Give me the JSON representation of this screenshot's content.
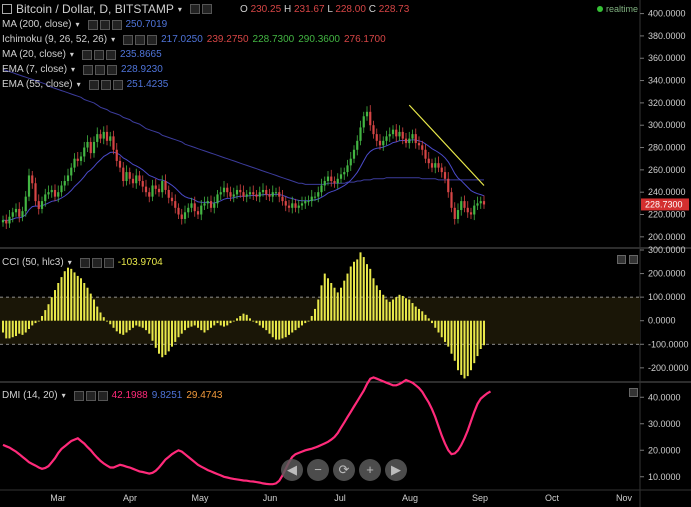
{
  "header": {
    "symbol": "Bitcoin / Dollar, D, BITSTAMP",
    "o_label": "O",
    "o_value": "230.25",
    "h_label": "H",
    "h_value": "231.67",
    "l_label": "L",
    "l_value": "228.00",
    "c_label": "C",
    "c_value": "228.73",
    "realtime": "realtime"
  },
  "indicators": [
    {
      "label": "MA (200, close)",
      "values": [
        "250.7019"
      ],
      "colors": [
        "#4f74d9"
      ]
    },
    {
      "label": "Ichimoku (9, 26, 52, 26)",
      "values": [
        "217.0250",
        "239.2750",
        "228.7300",
        "290.3600",
        "276.1700"
      ],
      "colors": [
        "#4f74d9",
        "#d64545",
        "#43b643",
        "#43b643",
        "#d64545"
      ]
    },
    {
      "label": "MA (20, close)",
      "values": [
        "235.8665"
      ],
      "colors": [
        "#4f74d9"
      ]
    },
    {
      "label": "EMA (7, close)",
      "values": [
        "228.9230"
      ],
      "colors": [
        "#4f74d9"
      ]
    },
    {
      "label": "EMA (55, close)",
      "values": [
        "251.4235"
      ],
      "colors": [
        "#4f74d9"
      ]
    }
  ],
  "cci": {
    "label": "CCI (50, hlc3)",
    "value": "-103.9704"
  },
  "dmi": {
    "label": "DMI (14, 20)",
    "values": [
      "42.1988",
      "9.8251",
      "29.4743"
    ]
  },
  "price_badge": "228.7300",
  "nav_buttons": [
    "◀",
    "−",
    "⟳",
    "+",
    "▶"
  ],
  "colors": {
    "up": "#43b643",
    "down": "#d64545",
    "cci": "#e8e84a",
    "dmi": "#ff2a7a",
    "ma": "#3c3c9c",
    "trendline": "#e8e84a",
    "badge": "#d32f2f"
  },
  "chart_data": [
    {
      "type": "candlestick",
      "title": "Bitcoin / Dollar, D, BITSTAMP",
      "ylim": [
        190,
        405
      ],
      "y_ticks": [
        200,
        220,
        240,
        260,
        280,
        300,
        320,
        340,
        360,
        380,
        400
      ],
      "y_tick_labels": [
        "200.0000",
        "220.0000",
        "240.0000",
        "260.0000",
        "280.0000",
        "300.0000",
        "320.0000",
        "340.0000",
        "360.0000",
        "380.0000",
        "400.0000"
      ],
      "x_month_labels": [
        "Mar",
        "Apr",
        "May",
        "Jun",
        "Jul",
        "Aug",
        "Sep",
        "Oct",
        "Nov"
      ],
      "close": [
        215,
        212,
        218,
        222,
        225,
        218,
        223,
        236,
        255,
        248,
        232,
        225,
        232,
        238,
        240,
        242,
        236,
        240,
        246,
        250,
        255,
        262,
        270,
        268,
        272,
        280,
        285,
        275,
        285,
        292,
        288,
        294,
        286,
        290,
        278,
        268,
        262,
        250,
        258,
        252,
        248,
        255,
        250,
        245,
        240,
        236,
        246,
        243,
        240,
        250,
        242,
        235,
        232,
        226,
        220,
        216,
        222,
        226,
        230,
        223,
        220,
        228,
        230,
        232,
        226,
        230,
        238,
        240,
        244,
        240,
        236,
        238,
        242,
        240,
        236,
        238,
        240,
        238,
        236,
        240,
        242,
        238,
        236,
        240,
        240,
        236,
        232,
        228,
        226,
        230,
        226,
        228,
        230,
        232,
        232,
        236,
        236,
        240,
        246,
        250,
        254,
        250,
        248,
        252,
        256,
        258,
        264,
        270,
        278,
        286,
        298,
        308,
        312,
        300,
        292,
        286,
        282,
        286,
        290,
        292,
        296,
        290,
        294,
        288,
        284,
        288,
        292,
        284,
        282,
        278,
        270,
        266,
        262,
        266,
        262,
        258,
        252,
        240,
        226,
        216,
        224,
        232,
        226,
        222,
        220,
        228,
        230,
        232,
        229
      ],
      "ma200": [
        350,
        349,
        348,
        347,
        346,
        345,
        344,
        343,
        342,
        341,
        340,
        339,
        338,
        337,
        335,
        334,
        333,
        332,
        331,
        330,
        329,
        328,
        327,
        326,
        325,
        323,
        322,
        321,
        320,
        318,
        316,
        315,
        314,
        312,
        311,
        310,
        309,
        307,
        306,
        305,
        303,
        302,
        301,
        299,
        297,
        296,
        295,
        294,
        293,
        291,
        290,
        289,
        288,
        287,
        286,
        285,
        283,
        282,
        281,
        280,
        279,
        278,
        277,
        276,
        275,
        274,
        273,
        272,
        271,
        270,
        269,
        268,
        267,
        266,
        265,
        264,
        263,
        262,
        261,
        260,
        259,
        258,
        257,
        256,
        255,
        254,
        253,
        252,
        251,
        250,
        249,
        248,
        248,
        247,
        247,
        247,
        247,
        247,
        247,
        247,
        248,
        248,
        248,
        248,
        248,
        248,
        249,
        249,
        249,
        250,
        250,
        251,
        251,
        251,
        252,
        252,
        252,
        252,
        253,
        253,
        253,
        253,
        253,
        253,
        253,
        253,
        253,
        253,
        253,
        252,
        252,
        252,
        252,
        252,
        251,
        251,
        251,
        251,
        251,
        251,
        251,
        251,
        251,
        251,
        251,
        251,
        251,
        251,
        251
      ],
      "trendline": [
        [
          125,
          318
        ],
        [
          148,
          246
        ]
      ]
    },
    {
      "type": "bar",
      "title": "CCI (50, hlc3)",
      "ylim": [
        -260,
        300
      ],
      "y_ticks": [
        -200,
        -100,
        0,
        100,
        200,
        300
      ],
      "y_tick_labels": [
        "-200.0000",
        "-100.0000",
        "0.0000",
        "100.0000",
        "200.0000",
        "300.0000"
      ],
      "reference_lines": [
        100,
        -100
      ],
      "values": [
        -50,
        -75,
        -75,
        -70,
        -65,
        -55,
        -60,
        -50,
        -35,
        -20,
        -10,
        0,
        20,
        45,
        70,
        100,
        130,
        160,
        185,
        210,
        225,
        220,
        205,
        190,
        180,
        160,
        140,
        115,
        90,
        60,
        35,
        15,
        0,
        -15,
        -30,
        -45,
        -55,
        -60,
        -50,
        -40,
        -30,
        -20,
        -25,
        -30,
        -40,
        -55,
        -85,
        -115,
        -140,
        -155,
        -145,
        -130,
        -110,
        -90,
        -70,
        -55,
        -40,
        -30,
        -25,
        -20,
        -30,
        -40,
        -50,
        -40,
        -30,
        -20,
        -10,
        -20,
        -25,
        -20,
        -10,
        0,
        10,
        20,
        30,
        25,
        10,
        0,
        -10,
        -20,
        -30,
        -40,
        -55,
        -70,
        -80,
        -80,
        -75,
        -70,
        -60,
        -50,
        -40,
        -30,
        -20,
        -10,
        0,
        20,
        50,
        90,
        150,
        200,
        180,
        160,
        140,
        120,
        140,
        170,
        200,
        230,
        250,
        260,
        290,
        270,
        240,
        220,
        180,
        150,
        130,
        110,
        90,
        80,
        90,
        100,
        110,
        105,
        95,
        90,
        75,
        60,
        50,
        40,
        25,
        10,
        -10,
        -30,
        -50,
        -70,
        -90,
        -110,
        -140,
        -170,
        -210,
        -230,
        -245,
        -235,
        -210,
        -180,
        -150,
        -120,
        -104
      ]
    },
    {
      "type": "line",
      "title": "DMI (14, 20)",
      "ylim": [
        5,
        45
      ],
      "y_ticks": [
        10,
        20,
        30,
        40
      ],
      "y_tick_labels": [
        "10.0000",
        "20.0000",
        "30.0000",
        "40.0000"
      ],
      "values": [
        22,
        21.5,
        21,
        20.2,
        19.5,
        18.5,
        17.5,
        16.5,
        15.5,
        14.8,
        14.2,
        13.5,
        13,
        13.3,
        14,
        15.5,
        17,
        19,
        20.5,
        21.5,
        22.5,
        23.5,
        24,
        24.5,
        23.5,
        22.5,
        21.2,
        20,
        18.5,
        17.2,
        16,
        15,
        14.2,
        13.5,
        13.5,
        14,
        14.5,
        14.2,
        13.8,
        13.5,
        13,
        12.5,
        12,
        11.8,
        11.5,
        11.2,
        11.5,
        12.3,
        13.5,
        15,
        16.5,
        17.5,
        18.5,
        19.3,
        20,
        19.5,
        18.5,
        17.5,
        16.5,
        15.5,
        14.5,
        13.8,
        13.2,
        12.5,
        12,
        11.5,
        11,
        10.5,
        10,
        9.7,
        9.4,
        9.2,
        9,
        8.8,
        8.6,
        8.5,
        8.3,
        8.2,
        8,
        7.8,
        7.5,
        7.3,
        7.2,
        7.2,
        7.5,
        8.5,
        10.5,
        13,
        15.5,
        17.5,
        18.5,
        19,
        19.5,
        20,
        20.3,
        20.6,
        21,
        21.5,
        22,
        22.6,
        23.2,
        24,
        25,
        26.5,
        28.5,
        30.5,
        32.5,
        34.5,
        36.5,
        38.5,
        40.5,
        42.5,
        45,
        47,
        47.5,
        47,
        46.5,
        46,
        45.5,
        45,
        44.5,
        44.5,
        45,
        45.7,
        46.5,
        46,
        45.5,
        44.5,
        43.5,
        42,
        40,
        38,
        35.5,
        32.5,
        29,
        25.5,
        22.5,
        20,
        18.5,
        18.8,
        20,
        22,
        24.5,
        27.5,
        31,
        34.5,
        37.5,
        39.5,
        40.5,
        41.5,
        42.2
      ]
    }
  ]
}
